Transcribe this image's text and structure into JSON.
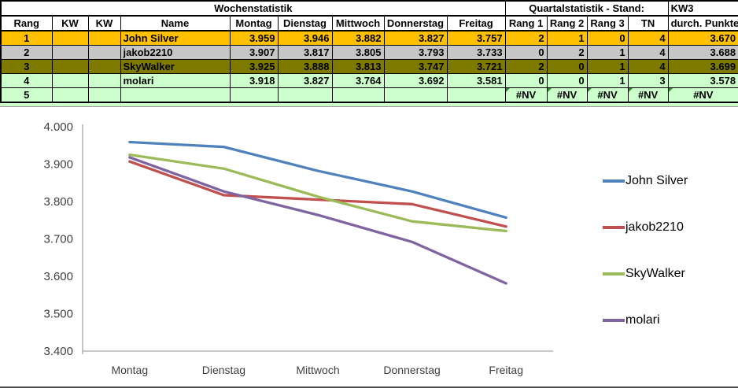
{
  "week": {
    "title": "Wochenstatistik",
    "headers": [
      "Rang",
      "KW",
      "KW",
      "Name",
      "Montag",
      "Dienstag",
      "Mittwoch",
      "Donnerstag",
      "Freitag"
    ],
    "rows": [
      [
        "1",
        "",
        "",
        "John Silver",
        "3.959",
        "3.946",
        "3.882",
        "3.827",
        "3.757"
      ],
      [
        "2",
        "",
        "",
        "jakob2210",
        "3.907",
        "3.817",
        "3.805",
        "3.793",
        "3.733"
      ],
      [
        "3",
        "",
        "",
        "SkyWalker",
        "3.925",
        "3.888",
        "3.813",
        "3.747",
        "3.721"
      ],
      [
        "4",
        "",
        "",
        "molari",
        "3.918",
        "3.827",
        "3.764",
        "3.692",
        "3.581"
      ],
      [
        "5",
        "",
        "",
        "",
        "",
        "",
        "",
        "",
        ""
      ]
    ]
  },
  "quarter": {
    "title": "Quartalstatistik - Stand:",
    "stand": "KW3",
    "headers": [
      "Rang 1",
      "Rang 2",
      "Rang 3",
      "TN",
      "durch. Punkte"
    ],
    "rows": [
      [
        "2",
        "1",
        "0",
        "4",
        "3.670"
      ],
      [
        "0",
        "2",
        "1",
        "4",
        "3.688"
      ],
      [
        "2",
        "0",
        "1",
        "4",
        "3.699"
      ],
      [
        "0",
        "0",
        "1",
        "3",
        "3.578"
      ],
      [
        "#NV",
        "#NV",
        "#NV",
        "#NV",
        "#NV"
      ]
    ]
  },
  "row_colors": [
    "#FFC000",
    "#C6C6C6",
    "#7E7A00",
    "#CCFFCC",
    "#CCFFCC"
  ],
  "colors": {
    "border": "#000000",
    "error_marker": "#2E8B2E",
    "axis_line": "#A6A6A6",
    "tick_text": "#3F3F3F"
  },
  "chart_data": {
    "type": "line",
    "categories": [
      "Montag",
      "Dienstag",
      "Mittwoch",
      "Donnerstag",
      "Freitag"
    ],
    "series": [
      {
        "name": "John Silver",
        "color": "#4F81BD",
        "values": [
          3.959,
          3.946,
          3.882,
          3.827,
          3.757
        ]
      },
      {
        "name": "jakob2210",
        "color": "#C0504D",
        "values": [
          3.907,
          3.817,
          3.805,
          3.793,
          3.733
        ]
      },
      {
        "name": "SkyWalker",
        "color": "#9BBB59",
        "values": [
          3.925,
          3.888,
          3.813,
          3.747,
          3.721
        ]
      },
      {
        "name": "molari",
        "color": "#8064A2",
        "values": [
          3.918,
          3.827,
          3.764,
          3.692,
          3.581
        ]
      }
    ],
    "ylim": [
      3.4,
      4.0
    ],
    "ytick_labels": [
      "3.400",
      "3.500",
      "3.600",
      "3.700",
      "3.800",
      "3.900",
      "4.000"
    ],
    "grid": false,
    "legend_position": "right"
  }
}
